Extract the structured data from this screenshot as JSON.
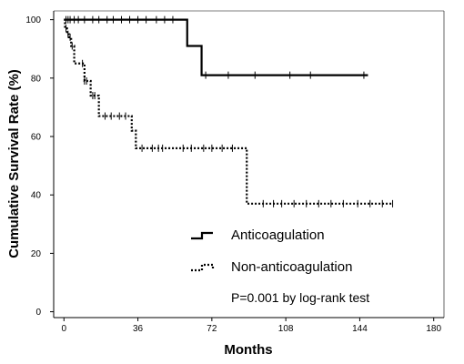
{
  "chart_data": {
    "type": "line",
    "subtype": "kaplan-meier-step",
    "xlabel": "Months",
    "ylabel": "Cumulative Survival Rate (%)",
    "xlim": [
      -5,
      185
    ],
    "ylim": [
      -2,
      103
    ],
    "xticks": [
      0,
      36,
      72,
      108,
      144,
      180
    ],
    "yticks": [
      0,
      20,
      40,
      60,
      80,
      100
    ],
    "grid": false,
    "legend_position": "center",
    "annotation": "P=0.001 by log-rank test",
    "series": [
      {
        "name": "Anticoagulation",
        "line_style": "solid",
        "color": "#000000",
        "steps": [
          [
            0,
            100
          ],
          [
            60,
            100
          ],
          [
            60,
            91
          ],
          [
            67,
            91
          ],
          [
            67,
            81
          ],
          [
            148,
            81
          ]
        ],
        "censor": [
          1,
          2,
          3,
          5,
          7,
          10,
          14,
          17,
          21,
          24,
          28,
          32,
          36,
          40,
          45,
          49,
          53,
          69,
          80,
          93,
          110,
          120,
          146
        ]
      },
      {
        "name": "Non-anticoagulation",
        "line_style": "dotted",
        "color": "#000000",
        "steps": [
          [
            0,
            100
          ],
          [
            0.5,
            97
          ],
          [
            1.5,
            95
          ],
          [
            2.5,
            94
          ],
          [
            3.5,
            91
          ],
          [
            5,
            85
          ],
          [
            10,
            79
          ],
          [
            13,
            74
          ],
          [
            17,
            67
          ],
          [
            31,
            67
          ],
          [
            33,
            62
          ],
          [
            35,
            56
          ],
          [
            87,
            56
          ],
          [
            89,
            37
          ],
          [
            160,
            37
          ]
        ],
        "censor": [
          1,
          2,
          3,
          4,
          9,
          10,
          11,
          14,
          15,
          20,
          23,
          27,
          30,
          38,
          43,
          46,
          48,
          58,
          62,
          68,
          72,
          77,
          82,
          97,
          102,
          106,
          112,
          118,
          124,
          130,
          136,
          143,
          149,
          155,
          160
        ]
      }
    ]
  }
}
